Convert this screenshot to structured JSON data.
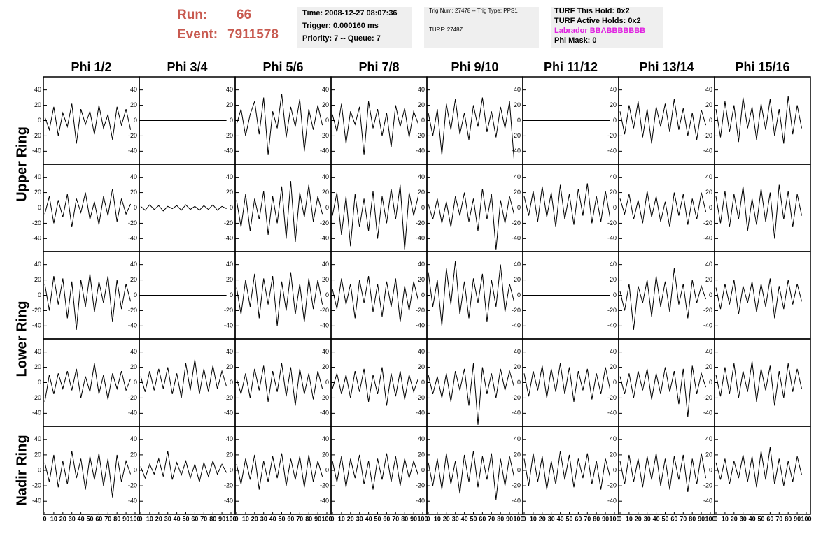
{
  "header": {
    "run_label": "Run:",
    "run": 66,
    "event_label": "Event:",
    "event": 7911578,
    "box1": [
      "Time: 2008-12-27 08:07:36",
      "Trigger: 0.000160 ms",
      "Priority: 7 -- Queue: 7"
    ],
    "box2": [
      "Trig Num: 27478 -- Trig Type: PPS1",
      "TURF: 27487"
    ],
    "box3": [
      "TURF This Hold: 0x2",
      "TURF Active Holds: 0x2",
      "Labrador BBABBBBBBB",
      "Phi Mask: 0"
    ]
  },
  "chart_data": {
    "type": "line",
    "color": "#000000",
    "columns": [
      "Phi 1/2",
      "Phi 3/4",
      "Phi 5/6",
      "Phi 7/8",
      "Phi 9/10",
      "Phi 11/12",
      "Phi 13/14",
      "Phi 15/16"
    ],
    "rings": [
      "Upper Ring",
      "Lower Ring",
      "Nadir Ring"
    ],
    "xlim": [
      0,
      100
    ],
    "xticks": [
      0,
      10,
      20,
      30,
      40,
      50,
      60,
      70,
      80,
      90,
      100
    ],
    "ylim": [
      -57,
      57
    ],
    "yticks": [
      -40,
      -20,
      0,
      20,
      40
    ],
    "x": [
      0,
      5,
      10,
      15,
      20,
      25,
      30,
      35,
      40,
      45,
      50,
      55,
      60,
      65,
      70,
      75,
      80,
      85,
      90,
      95
    ],
    "panels": [
      [
        [
          5,
          -12,
          18,
          -20,
          10,
          -8,
          22,
          -30,
          15,
          -5,
          12,
          -18,
          20,
          -10,
          8,
          -25,
          18,
          -6,
          15,
          -12
        ],
        [
          0,
          0,
          0,
          0,
          0,
          0,
          0,
          0,
          0,
          0,
          0,
          0,
          0,
          0,
          0,
          0,
          0,
          0,
          0,
          0
        ],
        [
          -5,
          15,
          -20,
          8,
          25,
          -18,
          30,
          -45,
          12,
          -10,
          35,
          -22,
          18,
          -8,
          28,
          -40,
          15,
          -12,
          20,
          -6
        ],
        [
          8,
          -15,
          22,
          -30,
          12,
          -5,
          18,
          -45,
          25,
          -10,
          15,
          -20,
          10,
          -35,
          20,
          -8,
          16,
          -22,
          12,
          -4
        ],
        [
          10,
          -20,
          15,
          -45,
          22,
          -12,
          28,
          -18,
          10,
          -25,
          20,
          -8,
          30,
          -15,
          12,
          -22,
          18,
          -10,
          25,
          -50
        ],
        [
          0,
          0,
          0,
          0,
          0,
          0,
          0,
          0,
          0,
          0,
          0,
          0,
          0,
          0,
          0,
          0,
          0,
          0,
          0,
          0
        ],
        [
          12,
          -18,
          20,
          -10,
          25,
          -22,
          15,
          -30,
          18,
          -8,
          22,
          -15,
          28,
          -12,
          16,
          -20,
          10,
          -25,
          14,
          -6
        ],
        [
          15,
          -22,
          25,
          -15,
          20,
          -28,
          30,
          -10,
          18,
          -25,
          22,
          -12,
          28,
          -20,
          15,
          -30,
          32,
          -18,
          20,
          -10
        ]
      ],
      [
        [
          -8,
          15,
          -20,
          10,
          -12,
          18,
          -25,
          12,
          -6,
          20,
          -15,
          8,
          -22,
          15,
          -10,
          25,
          -18,
          12,
          -8,
          5
        ],
        [
          2,
          -3,
          4,
          -2,
          3,
          -4,
          2,
          -1,
          3,
          -3,
          4,
          -2,
          2,
          -3,
          3,
          -2,
          4,
          -3,
          2,
          -1
        ],
        [
          10,
          -25,
          18,
          -30,
          12,
          -15,
          22,
          -35,
          15,
          -20,
          28,
          -40,
          35,
          -45,
          20,
          -12,
          30,
          -18,
          15,
          -8
        ],
        [
          -10,
          20,
          -35,
          15,
          -50,
          18,
          -25,
          12,
          -30,
          22,
          -40,
          15,
          -20,
          25,
          -15,
          30,
          -55,
          20,
          -10,
          15
        ],
        [
          5,
          -15,
          12,
          -20,
          8,
          -25,
          15,
          -10,
          20,
          -18,
          12,
          -30,
          25,
          -15,
          18,
          -55,
          10,
          -20,
          15,
          -8
        ],
        [
          15,
          -10,
          22,
          -18,
          28,
          -12,
          20,
          -25,
          30,
          -15,
          18,
          -22,
          25,
          -10,
          32,
          -20,
          15,
          -18,
          22,
          -12
        ],
        [
          12,
          -8,
          18,
          -15,
          10,
          -20,
          22,
          -12,
          15,
          -18,
          8,
          -25,
          20,
          -10,
          18,
          -22,
          12,
          -15,
          20,
          -5
        ],
        [
          15,
          -20,
          22,
          -25,
          18,
          -15,
          28,
          -30,
          12,
          -22,
          25,
          -18,
          20,
          -40,
          30,
          -15,
          22,
          -25,
          18,
          -10
        ]
      ],
      [
        [
          15,
          -20,
          25,
          -12,
          22,
          -30,
          18,
          -45,
          20,
          -15,
          28,
          -22,
          18,
          -10,
          25,
          -35,
          20,
          -18,
          15,
          -8
        ],
        [
          0,
          0,
          0,
          0,
          0,
          0,
          0,
          0,
          0,
          0,
          0,
          0,
          0,
          0,
          0,
          0,
          0,
          0,
          0,
          0
        ],
        [
          10,
          -25,
          20,
          -15,
          28,
          -30,
          22,
          -12,
          25,
          -40,
          18,
          -20,
          30,
          -25,
          15,
          -35,
          22,
          -18,
          20,
          -12
        ],
        [
          8,
          -18,
          22,
          -12,
          15,
          -30,
          20,
          -10,
          25,
          -22,
          15,
          -28,
          18,
          -15,
          22,
          -35,
          12,
          -20,
          18,
          -6
        ],
        [
          30,
          -15,
          20,
          -40,
          35,
          -12,
          45,
          -25,
          18,
          -30,
          22,
          -10,
          28,
          -35,
          20,
          -15,
          40,
          -22,
          15,
          -8
        ],
        [
          0,
          0,
          0,
          0,
          0,
          0,
          0,
          0,
          0,
          0,
          0,
          0,
          0,
          0,
          0,
          0,
          0,
          0,
          0,
          0
        ],
        [
          5,
          -20,
          15,
          -45,
          12,
          -10,
          20,
          -28,
          25,
          -15,
          18,
          -22,
          35,
          -12,
          15,
          -30,
          20,
          -10,
          12,
          -5
        ],
        [
          10,
          -18,
          15,
          -12,
          20,
          -25,
          12,
          -10,
          18,
          -22,
          15,
          -15,
          22,
          -30,
          12,
          -18,
          20,
          -12,
          15,
          -8
        ]
      ],
      [
        [
          -25,
          10,
          -15,
          12,
          -8,
          15,
          -10,
          18,
          -20,
          8,
          -12,
          25,
          -15,
          10,
          -22,
          12,
          -8,
          15,
          -10,
          5
        ],
        [
          8,
          -12,
          15,
          -10,
          18,
          -8,
          20,
          -15,
          12,
          -20,
          25,
          -10,
          30,
          -15,
          18,
          -12,
          22,
          -8,
          15,
          -5
        ],
        [
          5,
          -15,
          12,
          -20,
          18,
          -10,
          22,
          -25,
          15,
          -12,
          25,
          -18,
          20,
          -30,
          18,
          -15,
          12,
          -22,
          15,
          -8
        ],
        [
          -8,
          12,
          -15,
          10,
          -20,
          15,
          -12,
          18,
          -25,
          10,
          -15,
          20,
          -30,
          12,
          -18,
          15,
          -22,
          10,
          -12,
          5
        ],
        [
          10,
          -15,
          8,
          -20,
          12,
          -25,
          15,
          -10,
          18,
          -30,
          25,
          -55,
          20,
          -15,
          12,
          -20,
          18,
          -10,
          15,
          -5
        ],
        [
          12,
          -18,
          15,
          -10,
          22,
          -20,
          18,
          -12,
          25,
          -15,
          20,
          -25,
          15,
          -10,
          18,
          -22,
          12,
          -15,
          20,
          -8
        ],
        [
          8,
          -15,
          12,
          -20,
          15,
          -10,
          18,
          -22,
          12,
          -15,
          20,
          -12,
          15,
          -28,
          18,
          -45,
          22,
          -15,
          12,
          -6
        ],
        [
          10,
          -18,
          20,
          -15,
          25,
          -20,
          15,
          -12,
          28,
          -25,
          18,
          -10,
          22,
          -30,
          15,
          -20,
          25,
          -12,
          18,
          -8
        ]
      ],
      [
        [
          10,
          -15,
          20,
          -22,
          12,
          -18,
          25,
          -10,
          15,
          -25,
          18,
          -12,
          22,
          -20,
          15,
          -35,
          20,
          -15,
          12,
          -5
        ],
        [
          5,
          -10,
          8,
          -5,
          15,
          -8,
          25,
          -12,
          10,
          -6,
          12,
          -10,
          8,
          -15,
          10,
          -8,
          12,
          -5,
          8,
          -3
        ],
        [
          8,
          -18,
          15,
          -12,
          20,
          -25,
          12,
          -15,
          18,
          -10,
          22,
          -20,
          15,
          -12,
          18,
          -22,
          20,
          -15,
          12,
          -8
        ],
        [
          12,
          -15,
          18,
          -22,
          15,
          -10,
          20,
          -18,
          12,
          -25,
          15,
          -12,
          22,
          -15,
          18,
          -20,
          15,
          -10,
          12,
          -6
        ],
        [
          10,
          -20,
          15,
          -25,
          22,
          -18,
          12,
          -30,
          20,
          -15,
          25,
          -22,
          18,
          -12,
          22,
          -38,
          15,
          -20,
          18,
          -8
        ],
        [
          15,
          -20,
          22,
          -15,
          18,
          -25,
          12,
          -18,
          25,
          -12,
          20,
          -22,
          15,
          -10,
          22,
          -18,
          12,
          -25,
          15,
          -8
        ],
        [
          12,
          -18,
          20,
          -15,
          15,
          -22,
          18,
          -12,
          22,
          -20,
          15,
          -25,
          18,
          -12,
          20,
          -28,
          15,
          -18,
          22,
          -10
        ],
        [
          10,
          -12,
          15,
          -18,
          12,
          -10,
          20,
          -15,
          18,
          -22,
          25,
          -12,
          30,
          -18,
          15,
          -20,
          12,
          -15,
          18,
          -6
        ]
      ]
    ]
  }
}
